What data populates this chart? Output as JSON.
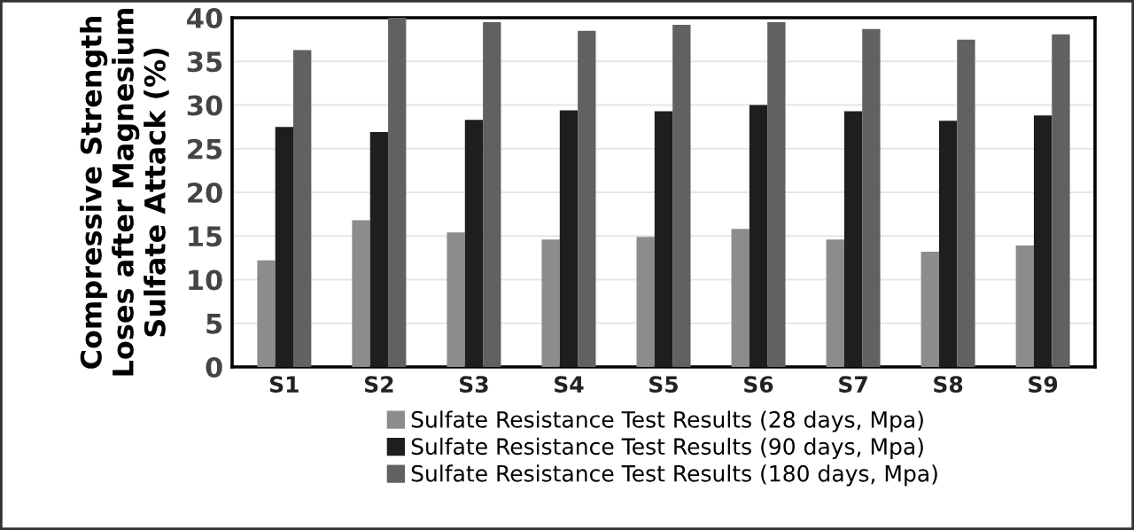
{
  "chart_data": {
    "type": "bar",
    "ylabel": "Compressive Strength\nLoses after Magnesium\nSulfate Attack (%)",
    "categories": [
      "S1",
      "S2",
      "S3",
      "S4",
      "S5",
      "S6",
      "S7",
      "S8",
      "S9"
    ],
    "series": [
      {
        "name": "Sulfate Resistance Test Results (28 days, Mpa)",
        "color": "#8c8c8c",
        "values": [
          12.2,
          16.8,
          15.4,
          14.6,
          14.9,
          15.8,
          14.6,
          13.2,
          13.9
        ]
      },
      {
        "name": "Sulfate Resistance Test Results (90 days, Mpa)",
        "color": "#1e1e1e",
        "values": [
          27.5,
          26.9,
          28.3,
          29.4,
          29.3,
          30.0,
          29.3,
          28.2,
          28.8
        ]
      },
      {
        "name": "Sulfate Resistance Test Results (180 days, Mpa)",
        "color": "#616161",
        "values": [
          36.3,
          40.0,
          39.5,
          38.5,
          39.2,
          39.5,
          38.7,
          37.5,
          38.1
        ]
      }
    ],
    "ylim": [
      0,
      40
    ],
    "yticks": [
      0,
      5,
      10,
      15,
      20,
      25,
      30,
      35,
      40
    ],
    "grid": "y",
    "legend": "bottom"
  }
}
